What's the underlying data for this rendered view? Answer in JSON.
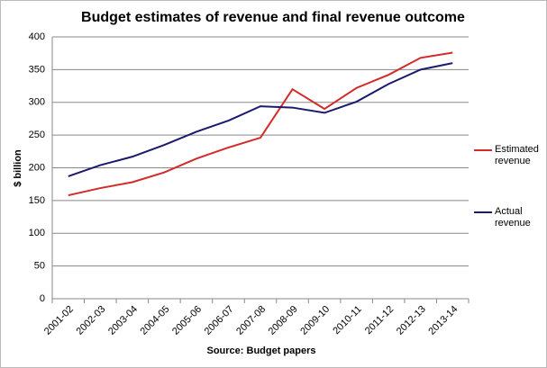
{
  "chart_data": {
    "type": "line",
    "title": "Budget estimates of revenue and final revenue outcome",
    "y_label": "$ billion",
    "x_label": "Source: Budget papers",
    "categories": [
      "2001-02",
      "2002-03",
      "2003-04",
      "2004-05",
      "2005-06",
      "2006-07",
      "2007-08",
      "2008-09",
      "2009-10",
      "2010-11",
      "2011-12",
      "2012-13",
      "2013-14"
    ],
    "series": [
      {
        "name": "Estimated revenue",
        "color": "#d42a2a",
        "values": [
          158,
          169,
          178,
          193,
          214,
          231,
          246,
          320,
          290,
          322,
          342,
          368,
          376
        ]
      },
      {
        "name": "Actual revenue",
        "color": "#1a1a6e",
        "values": [
          187,
          204,
          217,
          235,
          255,
          272,
          294,
          292,
          284,
          301,
          328,
          350,
          360
        ]
      }
    ],
    "ylim": [
      0,
      400
    ],
    "yticks": [
      0,
      50,
      100,
      150,
      200,
      250,
      300,
      350,
      400
    ],
    "grid": true,
    "legend": "right"
  }
}
